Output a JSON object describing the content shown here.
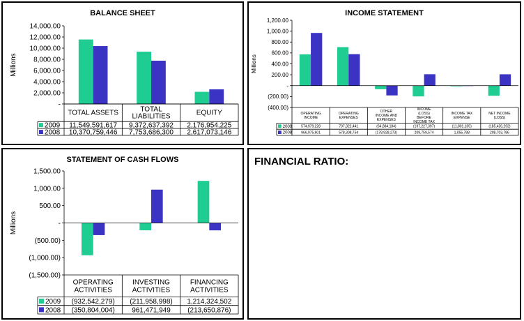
{
  "colors": {
    "s2009": "#1fcc91",
    "s2008": "#3b33c4"
  },
  "chart_data": [
    {
      "id": "balance",
      "type": "bar",
      "title": "BALANCE SHEET",
      "ylabel": "Millions",
      "ylim": [
        0,
        14000
      ],
      "yticks": [
        0,
        2000,
        4000,
        6000,
        8000,
        10000,
        12000,
        14000
      ],
      "ytick_labels": [
        "-",
        "2,000.00",
        "4,000.00",
        "6,000.00",
        "8,000.00",
        "10,000.00",
        "12,000.00",
        "14,000.00"
      ],
      "categories": [
        "TOTAL ASSETS",
        "TOTAL LIABILITIES",
        "EQUITY"
      ],
      "series": [
        {
          "name": "2009",
          "values": [
            11549.591617,
            9372.637392,
            2176.954225
          ],
          "labels": [
            "11,549,591,617",
            "9,372,637,392",
            "2,176,954,225"
          ]
        },
        {
          "name": "2008",
          "values": [
            10370.759446,
            7753.6863,
            2617.073146
          ],
          "labels": [
            "10,370,759,446",
            "7,753,686,300",
            "2,617,073,146"
          ]
        }
      ]
    },
    {
      "id": "income",
      "type": "bar",
      "title": "INCOME STATEMENT",
      "ylabel": "Millions",
      "ylim": [
        -400,
        1200
      ],
      "yticks": [
        -400,
        -200,
        0,
        200,
        400,
        600,
        800,
        1000,
        1200
      ],
      "ytick_labels": [
        "(400.00)",
        "(200.00)",
        "-",
        "200.00",
        "400.00",
        "600.00",
        "800.00",
        "1,000.00",
        "1,200.00"
      ],
      "categories": [
        "OPERATING INCOME",
        "OPERATING EXPENSES",
        "OTHER INCOME AND EXPENSES",
        "INCOME (LOSS) BEFORE INCOME TAX",
        "INCOME TAX EXPENSE",
        "NET INCOME (LOSS)"
      ],
      "series": [
        {
          "name": "2009",
          "values": [
            574.979228,
            707.322441,
            -64.884184,
            -197.227397,
            -11.801105,
            -185.426292
          ],
          "labels": [
            "574,979,228",
            "707,322,441",
            "(64,884,184)",
            "(197,227,397)",
            "(11,801,105)",
            "(185,426,292)"
          ]
        },
        {
          "name": "2008",
          "values": [
            966.975601,
            578.308754,
            -178.928273,
            209.759574,
            1.055788,
            208.703786
          ],
          "labels": [
            "966,975,601",
            "578,308,754",
            "(178,928,273)",
            "209,759,574",
            "1,055,788",
            "208,703,786"
          ]
        }
      ]
    },
    {
      "id": "cashflow",
      "type": "bar",
      "title": "STATEMENT OF CASH FLOWS",
      "ylabel": "Millions",
      "ylim": [
        -1500,
        1500
      ],
      "yticks": [
        -1500,
        -1000,
        -500,
        0,
        500,
        1000,
        1500
      ],
      "ytick_labels": [
        "(1,500.00)",
        "(1,000.00)",
        "(500.00)",
        "-",
        "500.00",
        "1,000.00",
        "1,500.00"
      ],
      "categories": [
        "OPERATING ACTIVITIES",
        "INVESTING ACTIVITIES",
        "FINANCING ACTIVITIES"
      ],
      "series": [
        {
          "name": "2009",
          "values": [
            -932.542279,
            -211.958998,
            1214.324502
          ],
          "labels": [
            "(932,542,279)",
            "(211,958,998)",
            "1,214,324,502"
          ]
        },
        {
          "name": "2008",
          "values": [
            -350.804004,
            961.471949,
            -213.650876
          ],
          "labels": [
            "(350,804,004)",
            "961,471,949",
            "(213,650,876)"
          ]
        }
      ]
    }
  ],
  "ratio": {
    "title": "FINANCIAL RATIO:"
  }
}
